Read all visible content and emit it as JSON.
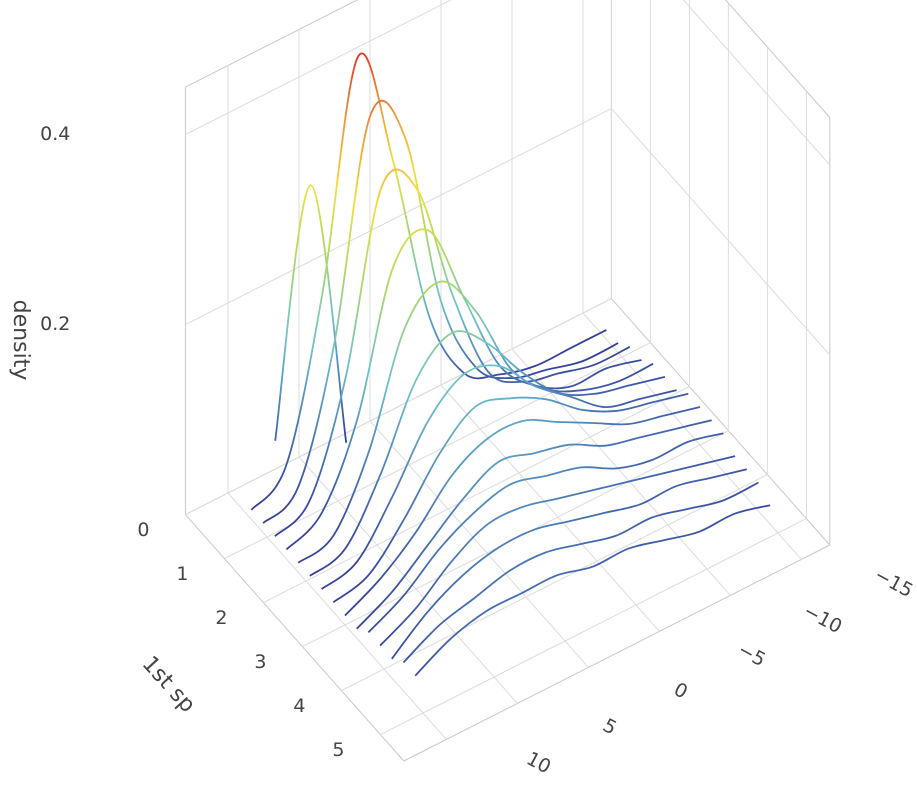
{
  "chart_data": {
    "type": "line3d",
    "zlabel": "density",
    "ylabel": "1st sp",
    "xlim": [
      -17,
      13
    ],
    "ylim": [
      0,
      5.6
    ],
    "zlim": [
      0,
      0.45
    ],
    "xticks": [
      {
        "value": -15,
        "label": "−15"
      },
      {
        "value": -10,
        "label": "−10"
      },
      {
        "value": -5,
        "label": "−5"
      },
      0,
      5,
      10
    ],
    "yticks": [
      0,
      1,
      2,
      3,
      4,
      5
    ],
    "zticks": [
      0.2,
      0.4
    ],
    "grid": true,
    "colorscale": [
      "#313695",
      "#4a7bb7",
      "#6fc0d0",
      "#a6d96a",
      "#f2e03a",
      "#f28f38",
      "#d7191c"
    ],
    "x": [
      -15,
      -12.5,
      -10,
      -7.5,
      -5,
      -2.5,
      0,
      2.5,
      5,
      7.5,
      10
    ],
    "series": [
      {
        "y": 0.3,
        "values": [
          null,
          null,
          null,
          null,
          null,
          null,
          null,
          0.01,
          0.3,
          0.05,
          null
        ]
      },
      {
        "y": 0.6,
        "values": [
          0.01,
          0.01,
          0.01,
          0.02,
          0.04,
          0.12,
          0.3,
          0.43,
          0.2,
          0.04,
          0.01
        ]
      },
      {
        "y": 0.9,
        "values": [
          0.01,
          0.01,
          0.02,
          0.03,
          0.06,
          0.15,
          0.34,
          0.38,
          0.16,
          0.03,
          0.01
        ]
      },
      {
        "y": 1.2,
        "values": [
          0.02,
          0.02,
          0.03,
          0.04,
          0.07,
          0.17,
          0.3,
          0.32,
          0.14,
          0.03,
          0.01
        ]
      },
      {
        "y": 1.5,
        "values": [
          0.02,
          0.03,
          0.03,
          0.05,
          0.09,
          0.18,
          0.27,
          0.25,
          0.11,
          0.03,
          0.01
        ]
      },
      {
        "y": 1.8,
        "values": [
          0.03,
          0.03,
          0.04,
          0.06,
          0.1,
          0.18,
          0.23,
          0.2,
          0.09,
          0.02,
          0.01
        ]
      },
      {
        "y": 2.1,
        "values": [
          0.03,
          0.04,
          0.05,
          0.07,
          0.11,
          0.16,
          0.19,
          0.16,
          0.08,
          0.02,
          0.01
        ]
      },
      {
        "y": 2.4,
        "values": [
          0.03,
          0.04,
          0.05,
          0.08,
          0.11,
          0.15,
          0.16,
          0.13,
          0.07,
          0.02,
          0.01
        ]
      },
      {
        "y": 2.7,
        "values": [
          0.04,
          0.05,
          0.06,
          0.08,
          0.11,
          0.13,
          0.14,
          0.11,
          0.06,
          0.02,
          0.01
        ]
      },
      {
        "y": 3.0,
        "values": [
          0.04,
          0.05,
          0.06,
          0.08,
          0.1,
          0.12,
          0.12,
          0.1,
          0.06,
          0.03,
          0.01
        ]
      },
      {
        "y": 3.3,
        "values": [
          0.04,
          0.05,
          0.06,
          0.07,
          0.09,
          0.1,
          0.11,
          0.09,
          0.06,
          0.03,
          0.01
        ]
      },
      {
        "y": 3.6,
        "values": [
          0.04,
          0.05,
          0.05,
          0.06,
          0.08,
          0.09,
          0.1,
          0.09,
          0.07,
          0.04,
          0.02
        ]
      },
      {
        "y": 3.9,
        "values": [
          0.03,
          0.04,
          0.05,
          0.06,
          0.07,
          0.08,
          0.09,
          0.09,
          0.07,
          0.04,
          0.02
        ]
      },
      {
        "y": 4.2,
        "values": [
          0.03,
          0.04,
          0.05,
          0.05,
          0.06,
          0.07,
          0.08,
          0.08,
          0.07,
          0.05,
          0.02
        ]
      },
      {
        "y": 4.5,
        "values": [
          0.03,
          0.03,
          0.04,
          0.05,
          0.05,
          0.06,
          0.07,
          0.07,
          0.06,
          0.05,
          0.03
        ]
      },
      {
        "y": 4.8,
        "values": [
          0.02,
          0.03,
          0.03,
          0.04,
          0.05,
          0.05,
          0.06,
          0.06,
          0.06,
          0.05,
          0.03
        ]
      }
    ]
  }
}
